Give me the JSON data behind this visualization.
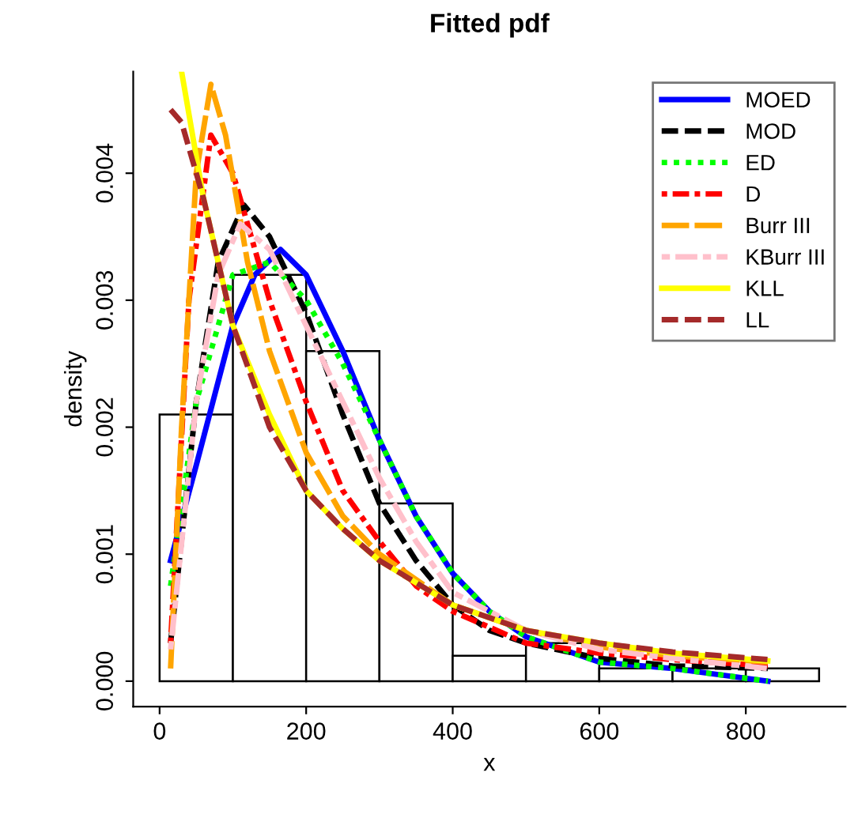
{
  "chart_data": {
    "type": "histogram",
    "title": "Fitted pdf",
    "xlabel": "x",
    "ylabel": "density",
    "bins": [
      0,
      100,
      200,
      300,
      400,
      500,
      600,
      700,
      800,
      900
    ],
    "values": [
      0.0021,
      0.0032,
      0.0026,
      0.0014,
      0.0002,
      0.0003,
      0.0001,
      0.0001,
      0.0001
    ],
    "xlim": [
      -36,
      936
    ],
    "ylim": [
      -0.0002,
      0.0048
    ],
    "xticks": [
      0,
      200,
      400,
      600,
      800
    ],
    "yticks": [
      {
        "value": 0,
        "label": "0.000"
      },
      {
        "value": 0.001,
        "label": "0.001"
      },
      {
        "value": 0.002,
        "label": "0.002"
      },
      {
        "value": 0.003,
        "label": "0.003"
      },
      {
        "value": 0.004,
        "label": "0.004"
      }
    ],
    "grid": false,
    "legend": "top right",
    "series": [
      {
        "type": "line",
        "name": "MOED",
        "color": "#0000ff",
        "line_style": "solid",
        "x": [
          15,
          50,
          100,
          130,
          165,
          200,
          250,
          300,
          350,
          400,
          450,
          500,
          600,
          700,
          830
        ],
        "values": [
          0.00095,
          0.0017,
          0.0028,
          0.0032,
          0.0034,
          0.0032,
          0.0026,
          0.0019,
          0.0013,
          0.00085,
          0.00055,
          0.00035,
          0.00015,
          0.0001,
          0
        ]
      },
      {
        "type": "line",
        "name": "MOD",
        "color": "#000000",
        "line_style": "dashed",
        "x": [
          15,
          50,
          80,
          115,
          150,
          200,
          250,
          300,
          350,
          400,
          450,
          500,
          600,
          700,
          830
        ],
        "values": [
          0.0003,
          0.0022,
          0.0033,
          0.00375,
          0.0035,
          0.0029,
          0.0021,
          0.0014,
          0.00095,
          0.0006,
          0.0004,
          0.0003,
          0.00018,
          0.00012,
          0.0001
        ]
      },
      {
        "type": "line",
        "name": "ED",
        "color": "#00ff00",
        "line_style": "dotted",
        "x": [
          15,
          50,
          100,
          150,
          200,
          250,
          300,
          350,
          400,
          450,
          500,
          600,
          700,
          830
        ],
        "values": [
          0.00075,
          0.0022,
          0.0032,
          0.0033,
          0.003,
          0.0025,
          0.0019,
          0.0013,
          0.00085,
          0.00055,
          0.00035,
          0.00015,
          0.0001,
          0
        ]
      },
      {
        "type": "line",
        "name": "D",
        "color": "#ff0000",
        "line_style": "dashdot",
        "x": [
          15,
          40,
          70,
          100,
          150,
          200,
          250,
          300,
          350,
          400,
          500,
          600,
          700,
          830
        ],
        "values": [
          0.0003,
          0.003,
          0.0043,
          0.004,
          0.003,
          0.0022,
          0.0015,
          0.0011,
          0.00075,
          0.00055,
          0.0003,
          0.00022,
          0.00017,
          0.00012
        ]
      },
      {
        "type": "line",
        "name": "Burr III",
        "color": "#ffa500",
        "line_style": "longdash",
        "x": [
          15,
          30,
          50,
          70,
          90,
          120,
          150,
          200,
          250,
          300,
          400,
          500,
          600,
          700,
          830
        ],
        "values": [
          0.0001,
          0.002,
          0.004,
          0.0047,
          0.0043,
          0.0033,
          0.0026,
          0.0018,
          0.0013,
          0.001,
          0.0006,
          0.0004,
          0.00027,
          0.0002,
          0.00015
        ]
      },
      {
        "type": "line",
        "name": "KBurr III",
        "color": "#ffc0cb",
        "line_style": "twodash",
        "x": [
          15,
          50,
          80,
          110,
          150,
          200,
          250,
          300,
          350,
          400,
          500,
          600,
          700,
          830
        ],
        "values": [
          0.00025,
          0.0022,
          0.0032,
          0.0036,
          0.0034,
          0.0028,
          0.0022,
          0.0016,
          0.0011,
          0.0007,
          0.0004,
          0.00025,
          0.00018,
          0.0001
        ]
      },
      {
        "type": "line",
        "name": "KLL",
        "color": "#ffff00",
        "line_style": "solid",
        "x": [
          30,
          60,
          100,
          150,
          200,
          250,
          300,
          400,
          500,
          600,
          700,
          830
        ],
        "values": [
          0.0048,
          0.0038,
          0.0028,
          0.0021,
          0.0015,
          0.0012,
          0.00095,
          0.0006,
          0.0004,
          0.0003,
          0.00022,
          0.00016
        ]
      },
      {
        "type": "line",
        "name": "LL",
        "color": "#a52a2a",
        "line_style": "dashed",
        "x": [
          15,
          30,
          60,
          100,
          150,
          200,
          250,
          300,
          400,
          500,
          600,
          700,
          830
        ],
        "values": [
          0.0045,
          0.0044,
          0.0038,
          0.0028,
          0.002,
          0.0015,
          0.0012,
          0.00095,
          0.0006,
          0.0004,
          0.0003,
          0.00023,
          0.00017
        ]
      }
    ]
  }
}
